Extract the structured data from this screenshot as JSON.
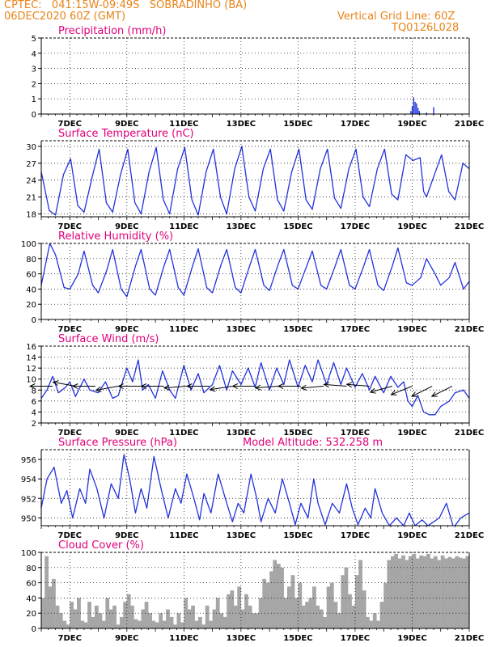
{
  "header": {
    "line1_left": "CPTEC:   041:15W-09:49S   SOBRADINHO (BA)",
    "line2_left": "06DEC2020 60Z (GMT)",
    "line1_right": "Vertical Grid Line: 60Z",
    "line2_right": "TQ0126L028"
  },
  "colors": {
    "header": "#e8841a",
    "title": "#e0007a",
    "line": "#2233dd",
    "cloud": "#a6a6a6",
    "arrow": "#000000"
  },
  "x_axis": {
    "range": [
      0,
      15
    ],
    "ticks": [
      1,
      3,
      5,
      7,
      9,
      11,
      13,
      15
    ],
    "tick_labels": [
      "7DEC",
      "9DEC",
      "11DEC",
      "13DEC",
      "15DEC",
      "17DEC",
      "19DEC",
      "21DEC"
    ]
  },
  "chart_data": [
    {
      "type": "bar",
      "title": "Precipitation (mm/h)",
      "ylim": [
        0,
        5
      ],
      "yticks": [
        0,
        1,
        2,
        3,
        4,
        5
      ],
      "grid": true,
      "x": [
        0.2,
        1.1,
        2.6,
        3.4,
        5.5,
        6.9,
        8.4,
        9.8,
        11.2,
        12.1,
        12.95,
        13.0,
        13.05,
        13.1,
        13.15,
        13.2,
        13.25,
        13.5,
        13.75
      ],
      "values": [
        0.03,
        0.02,
        0.03,
        0.02,
        0.03,
        0.02,
        0.03,
        0.02,
        0.03,
        0.05,
        0.2,
        0.5,
        1.1,
        0.8,
        0.7,
        0.4,
        0.2,
        0.1,
        0.45
      ]
    },
    {
      "type": "line",
      "title": "Surface Temperature (nC)",
      "ylim": [
        17.5,
        31
      ],
      "yticks": [
        18,
        21,
        24,
        27,
        30
      ],
      "grid": true,
      "x": [
        0,
        0.28,
        0.5,
        0.78,
        1.03,
        1.28,
        1.5,
        1.78,
        2.03,
        2.28,
        2.5,
        2.78,
        3.03,
        3.28,
        3.5,
        3.78,
        4.03,
        4.28,
        4.5,
        4.78,
        5.03,
        5.28,
        5.5,
        5.78,
        6.03,
        6.28,
        6.5,
        6.78,
        7.03,
        7.28,
        7.5,
        7.78,
        8.03,
        8.28,
        8.5,
        8.78,
        9.03,
        9.28,
        9.5,
        9.78,
        10.03,
        10.28,
        10.5,
        10.78,
        11.03,
        11.28,
        11.5,
        11.78,
        12.03,
        12.28,
        12.5,
        12.78,
        13.03,
        13.28,
        13.4,
        13.5,
        13.78,
        14.03,
        14.28,
        14.5,
        14.78,
        15
      ],
      "values": [
        25.5,
        18.6,
        17.8,
        25.0,
        27.8,
        19.5,
        18.3,
        24.5,
        29.5,
        20.0,
        18.3,
        25.0,
        29.5,
        20.0,
        18.0,
        25.5,
        29.8,
        20.5,
        18.0,
        26.0,
        29.8,
        20.5,
        17.8,
        25.5,
        29.5,
        21.0,
        18.0,
        26.0,
        30.0,
        21.0,
        18.5,
        26.0,
        29.5,
        20.5,
        18.5,
        25.5,
        29.5,
        20.5,
        18.8,
        26.0,
        29.5,
        20.8,
        19.0,
        26.0,
        29.5,
        21.0,
        19.3,
        26.0,
        29.5,
        21.5,
        20.5,
        28.5,
        27.5,
        28.0,
        22.0,
        21.0,
        25.0,
        28.5,
        22.0,
        20.5,
        27.0,
        26.0
      ]
    },
    {
      "type": "line",
      "title": "Relative Humidity (%)",
      "ylim": [
        0,
        100
      ],
      "yticks": [
        0,
        20,
        40,
        60,
        80,
        100
      ],
      "grid": true,
      "x": [
        0,
        0.3,
        0.5,
        0.8,
        1.0,
        1.3,
        1.5,
        1.8,
        2.0,
        2.3,
        2.5,
        2.8,
        3.0,
        3.3,
        3.5,
        3.8,
        4.0,
        4.3,
        4.5,
        4.8,
        5.0,
        5.3,
        5.5,
        5.8,
        6.0,
        6.3,
        6.5,
        6.8,
        7.0,
        7.3,
        7.5,
        7.8,
        8.0,
        8.3,
        8.5,
        8.8,
        9.0,
        9.3,
        9.5,
        9.8,
        10.0,
        10.3,
        10.5,
        10.8,
        11.0,
        11.3,
        11.5,
        11.8,
        12.0,
        12.3,
        12.5,
        12.8,
        13.0,
        13.3,
        13.5,
        13.8,
        14.0,
        14.3,
        14.5,
        14.8,
        15.0
      ],
      "values": [
        45,
        100,
        85,
        42,
        40,
        60,
        90,
        45,
        35,
        65,
        92,
        40,
        30,
        70,
        92,
        40,
        32,
        70,
        92,
        42,
        32,
        70,
        93,
        42,
        35,
        72,
        92,
        42,
        35,
        70,
        92,
        45,
        38,
        72,
        92,
        45,
        40,
        70,
        90,
        45,
        40,
        70,
        92,
        45,
        40,
        70,
        92,
        45,
        38,
        70,
        94,
        48,
        45,
        55,
        80,
        60,
        45,
        55,
        75,
        40,
        50
      ]
    },
    {
      "type": "line",
      "title": "Surface Wind (m/s)",
      "ylim": [
        2,
        16
      ],
      "yticks": [
        2,
        4,
        6,
        8,
        10,
        12,
        14,
        16
      ],
      "grid": true,
      "x": [
        0,
        0.2,
        0.4,
        0.6,
        0.85,
        1.0,
        1.2,
        1.5,
        1.7,
        2.0,
        2.25,
        2.5,
        2.7,
        3.0,
        3.2,
        3.4,
        3.55,
        3.75,
        4.0,
        4.25,
        4.5,
        4.7,
        5.0,
        5.25,
        5.5,
        5.7,
        6.0,
        6.25,
        6.5,
        6.7,
        7.0,
        7.25,
        7.5,
        7.7,
        8.0,
        8.25,
        8.5,
        8.7,
        9.0,
        9.25,
        9.5,
        9.7,
        10.0,
        10.25,
        10.5,
        10.7,
        11.0,
        11.25,
        11.5,
        11.7,
        12.0,
        12.25,
        12.5,
        12.7,
        12.85,
        13.0,
        13.2,
        13.4,
        13.6,
        13.8,
        14.0,
        14.3,
        14.5,
        14.8,
        15.0
      ],
      "values": [
        6.5,
        8.0,
        10.5,
        7.5,
        8.5,
        9.5,
        6.8,
        10.0,
        8.0,
        7.5,
        9.5,
        6.5,
        7.0,
        12.0,
        9.5,
        13.5,
        8.0,
        9.0,
        6.5,
        11.5,
        8.0,
        6.5,
        12.5,
        8.0,
        11.0,
        7.5,
        9.0,
        12.5,
        8.0,
        11.5,
        9.0,
        12.0,
        8.5,
        13.0,
        8.0,
        12.0,
        9.0,
        13.5,
        8.5,
        12.5,
        9.5,
        13.5,
        9.0,
        13.0,
        9.0,
        12.0,
        8.5,
        11.0,
        8.0,
        10.5,
        7.5,
        10.5,
        8.5,
        9.5,
        6.0,
        5.0,
        7.0,
        4.0,
        3.5,
        3.5,
        5.0,
        6.0,
        7.5,
        8.0,
        6.5
      ],
      "arrows": [
        {
          "x": 0.4,
          "u": -1.2,
          "v": 0.0
        },
        {
          "x": 1.2,
          "u": -1.1,
          "v": 0.2
        },
        {
          "x": 1.9,
          "u": -1.3,
          "v": 0.0
        },
        {
          "x": 2.7,
          "u": -1.1,
          "v": -0.2
        },
        {
          "x": 3.5,
          "u": -1.2,
          "v": 0.0
        },
        {
          "x": 4.3,
          "u": -1.3,
          "v": 0.0
        },
        {
          "x": 5.1,
          "u": -1.3,
          "v": -0.1
        },
        {
          "x": 5.9,
          "u": -1.2,
          "v": 0.0
        },
        {
          "x": 6.7,
          "u": -1.3,
          "v": -0.2
        },
        {
          "x": 7.5,
          "u": -1.4,
          "v": 0.0
        },
        {
          "x": 8.3,
          "u": -1.3,
          "v": -0.1
        },
        {
          "x": 9.1,
          "u": -1.3,
          "v": 0.0
        },
        {
          "x": 9.9,
          "u": -1.2,
          "v": -0.1
        },
        {
          "x": 10.7,
          "u": -1.3,
          "v": 0.1
        },
        {
          "x": 11.5,
          "u": -1.2,
          "v": 0.1
        },
        {
          "x": 12.3,
          "u": -1.1,
          "v": -0.3
        },
        {
          "x": 13.0,
          "u": -1.0,
          "v": -0.4
        },
        {
          "x": 13.7,
          "u": -1.0,
          "v": -0.5
        },
        {
          "x": 14.4,
          "u": -1.0,
          "v": -0.5
        }
      ]
    },
    {
      "type": "line",
      "title": "Surface Pressure (hPa)",
      "subtitle": "Model Altitude: 532.258 m",
      "ylim": [
        949.2,
        957
      ],
      "yticks": [
        950,
        952,
        954,
        956
      ],
      "grid": true,
      "x": [
        0,
        0.2,
        0.45,
        0.7,
        0.9,
        1.1,
        1.35,
        1.55,
        1.7,
        1.95,
        2.2,
        2.45,
        2.7,
        2.9,
        3.1,
        3.3,
        3.5,
        3.7,
        3.95,
        4.2,
        4.45,
        4.7,
        4.9,
        5.1,
        5.35,
        5.55,
        5.7,
        5.95,
        6.2,
        6.45,
        6.7,
        6.9,
        7.1,
        7.35,
        7.55,
        7.7,
        7.95,
        8.2,
        8.45,
        8.7,
        8.9,
        9.1,
        9.35,
        9.55,
        9.7,
        9.95,
        10.2,
        10.45,
        10.7,
        10.9,
        11.1,
        11.35,
        11.55,
        11.7,
        11.95,
        12.2,
        12.45,
        12.7,
        12.9,
        13.1,
        13.35,
        13.55,
        13.7,
        13.95,
        14.2,
        14.45,
        14.7,
        15.0
      ],
      "values": [
        951.0,
        954.0,
        955.2,
        951.5,
        952.8,
        950.0,
        953.0,
        951.5,
        955.0,
        953.0,
        950.0,
        953.5,
        952.0,
        956.5,
        954.0,
        950.5,
        953.0,
        951.0,
        956.3,
        953.0,
        950.0,
        953.0,
        951.5,
        954.5,
        952.0,
        949.8,
        952.5,
        950.5,
        954.5,
        952.0,
        949.6,
        951.5,
        950.5,
        954.5,
        952.0,
        949.6,
        952.0,
        950.5,
        954.0,
        951.5,
        949.3,
        951.5,
        950.0,
        954.0,
        951.5,
        949.3,
        951.5,
        950.5,
        953.5,
        951.0,
        949.3,
        951.0,
        950.0,
        953.0,
        950.5,
        949.2,
        950.0,
        949.2,
        950.5,
        949.2,
        949.8,
        949.2,
        949.5,
        950.0,
        951.5,
        949.0,
        950.0,
        950.5
      ]
    },
    {
      "type": "area",
      "title": "Cloud Cover (%)",
      "ylim": [
        0,
        100
      ],
      "yticks": [
        0,
        20,
        40,
        60,
        80,
        100
      ],
      "grid": true,
      "x": [
        0,
        0.12,
        0.25,
        0.37,
        0.5,
        0.62,
        0.75,
        0.87,
        1.0,
        1.12,
        1.25,
        1.37,
        1.5,
        1.62,
        1.75,
        1.87,
        2.0,
        2.12,
        2.25,
        2.37,
        2.5,
        2.62,
        2.75,
        2.87,
        3.0,
        3.12,
        3.25,
        3.37,
        3.5,
        3.62,
        3.75,
        3.87,
        4.0,
        4.12,
        4.25,
        4.37,
        4.5,
        4.62,
        4.75,
        4.87,
        5.0,
        5.12,
        5.25,
        5.37,
        5.5,
        5.62,
        5.75,
        5.87,
        6.0,
        6.12,
        6.25,
        6.37,
        6.5,
        6.62,
        6.75,
        6.87,
        7.0,
        7.12,
        7.25,
        7.37,
        7.5,
        7.62,
        7.75,
        7.87,
        8.0,
        8.12,
        8.25,
        8.37,
        8.5,
        8.62,
        8.75,
        8.87,
        9.0,
        9.12,
        9.25,
        9.37,
        9.5,
        9.62,
        9.75,
        9.87,
        10.0,
        10.12,
        10.25,
        10.37,
        10.5,
        10.62,
        10.75,
        10.87,
        11.0,
        11.12,
        11.25,
        11.37,
        11.5,
        11.62,
        11.75,
        11.87,
        12.0,
        12.12,
        12.25,
        12.37,
        12.5,
        12.62,
        12.75,
        12.87,
        13.0,
        13.12,
        13.25,
        13.37,
        13.5,
        13.62,
        13.75,
        13.87,
        14.0,
        14.12,
        14.25,
        14.37,
        14.5,
        14.62,
        14.75,
        14.87,
        15.0
      ],
      "values": [
        40,
        95,
        55,
        65,
        30,
        20,
        10,
        5,
        35,
        25,
        40,
        10,
        8,
        35,
        15,
        30,
        20,
        10,
        40,
        25,
        30,
        5,
        15,
        35,
        45,
        30,
        12,
        10,
        25,
        35,
        20,
        10,
        8,
        20,
        10,
        25,
        15,
        5,
        20,
        8,
        40,
        25,
        30,
        10,
        15,
        5,
        30,
        10,
        25,
        40,
        20,
        15,
        45,
        50,
        30,
        55,
        25,
        45,
        30,
        20,
        20,
        40,
        65,
        60,
        75,
        90,
        85,
        80,
        40,
        55,
        70,
        40,
        60,
        30,
        35,
        40,
        55,
        30,
        25,
        15,
        55,
        60,
        35,
        20,
        70,
        80,
        45,
        30,
        70,
        90,
        50,
        15,
        10,
        20,
        10,
        35,
        60,
        90,
        95,
        98,
        92,
        96,
        90,
        95,
        98,
        92,
        96,
        95,
        98,
        92,
        95,
        90,
        96,
        92,
        94,
        92,
        95,
        93,
        92,
        95,
        92
      ]
    }
  ]
}
